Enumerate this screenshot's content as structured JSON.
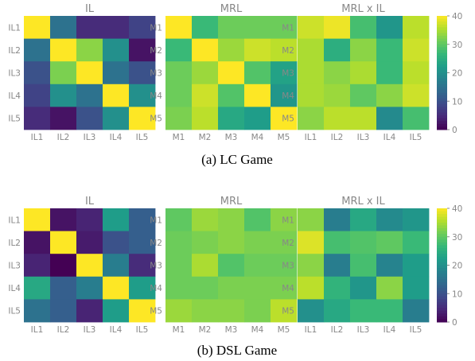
{
  "chart_data": [
    {
      "type": "heatmap",
      "title": "IL",
      "row_labels": [
        "IL1",
        "IL2",
        "IL3",
        "IL4",
        "IL5"
      ],
      "col_labels": [
        "IL1",
        "IL2",
        "IL3",
        "IL4",
        "IL5"
      ],
      "values": [
        [
          40,
          15,
          5,
          5,
          8
        ],
        [
          15,
          40,
          33,
          20,
          2
        ],
        [
          10,
          32,
          40,
          15,
          10
        ],
        [
          8,
          20,
          15,
          40,
          20
        ],
        [
          5,
          2,
          10,
          20,
          40
        ]
      ]
    },
    {
      "type": "heatmap",
      "title": "MRL",
      "row_labels": [
        "M1",
        "M2",
        "M3",
        "M4",
        "M5"
      ],
      "col_labels": [
        "M1",
        "M2",
        "M3",
        "M4",
        "M5"
      ],
      "values": [
        [
          40,
          27,
          31,
          31,
          31
        ],
        [
          27,
          40,
          34,
          37,
          36
        ],
        [
          31,
          34,
          40,
          29,
          23
        ],
        [
          31,
          37,
          29,
          40,
          21
        ],
        [
          32,
          36,
          24,
          22,
          40
        ]
      ]
    },
    {
      "type": "heatmap",
      "title": "MRL x IL",
      "row_labels": [
        "M1",
        "M2",
        "M3",
        "M4",
        "M5"
      ],
      "col_labels": [
        "IL1",
        "IL2",
        "IL3",
        "IL4",
        "IL5"
      ],
      "values": [
        [
          37,
          39,
          28,
          21,
          36
        ],
        [
          35,
          25,
          33,
          27,
          37
        ],
        [
          35,
          33,
          35,
          27,
          36
        ],
        [
          35,
          34,
          30,
          33,
          37
        ],
        [
          33,
          36,
          36,
          19,
          28
        ]
      ]
    },
    {
      "type": "heatmap",
      "title": "IL",
      "row_labels": [
        "IL1",
        "IL2",
        "IL3",
        "IL4",
        "IL5"
      ],
      "col_labels": [
        "IL1",
        "IL2",
        "IL3",
        "IL4",
        "IL5"
      ],
      "values": [
        [
          40,
          2,
          4,
          22,
          12
        ],
        [
          2,
          40,
          3,
          10,
          12
        ],
        [
          4,
          0,
          40,
          17,
          5
        ],
        [
          24,
          12,
          17,
          40,
          22
        ],
        [
          15,
          12,
          4,
          22,
          40
        ]
      ]
    },
    {
      "type": "heatmap",
      "title": "MRL",
      "row_labels": [
        "M1",
        "M2",
        "M3",
        "M4",
        "M5"
      ],
      "col_labels": [
        "M1",
        "M2",
        "M3",
        "M4",
        "M5"
      ],
      "values": [
        [
          30,
          34,
          33,
          29,
          33
        ],
        [
          31,
          32,
          33,
          32,
          32
        ],
        [
          31,
          35,
          29,
          31,
          31
        ],
        [
          31,
          31,
          32,
          32,
          32
        ],
        [
          34,
          33,
          33,
          32,
          36
        ]
      ]
    },
    {
      "type": "heatmap",
      "title": "MRL x IL",
      "row_labels": [
        "M1",
        "M2",
        "M3",
        "M4",
        "M5"
      ],
      "col_labels": [
        "IL1",
        "IL2",
        "IL3",
        "IL4",
        "IL5"
      ],
      "values": [
        [
          33,
          17,
          24,
          19,
          21
        ],
        [
          38,
          28,
          29,
          30,
          27
        ],
        [
          33,
          17,
          28,
          18,
          22
        ],
        [
          36,
          26,
          21,
          33,
          22
        ],
        [
          20,
          24,
          27,
          27,
          17
        ]
      ]
    }
  ],
  "colorbar": {
    "ticks": [
      "0",
      "10",
      "20",
      "30",
      "40"
    ],
    "range": [
      0,
      40
    ]
  },
  "captions": [
    "(a) LC Game",
    "(b) DSL Game"
  ]
}
